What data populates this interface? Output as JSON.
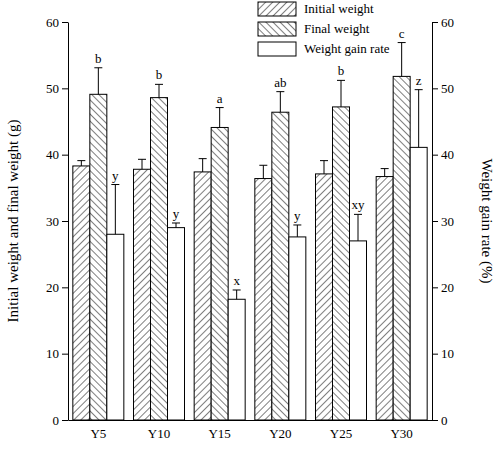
{
  "chart_data": {
    "type": "bar",
    "categories": [
      "Y5",
      "Y10",
      "Y15",
      "Y20",
      "Y25",
      "Y30"
    ],
    "series": [
      {
        "name": "Initial weight",
        "color": "#ffffff",
        "values": [
          38.3,
          37.8,
          37.4,
          36.4,
          37.1,
          36.7
        ],
        "errors": [
          0.8,
          1.5,
          2.0,
          2.0,
          2.0,
          1.2
        ]
      },
      {
        "name": "Final weight",
        "color": "#ffffff",
        "values": [
          49.1,
          48.6,
          44.1,
          46.4,
          47.2,
          51.8
        ],
        "errors": [
          4.0,
          2.0,
          3.0,
          3.1,
          4.0,
          5.1
        ],
        "letters": [
          "b",
          "b",
          "a",
          "ab",
          "b",
          "c"
        ]
      },
      {
        "name": "Weight gain rate",
        "color": "#ffffff",
        "axis": "y2",
        "values": [
          28.0,
          29.0,
          18.2,
          27.6,
          27.0,
          41.1
        ],
        "errors": [
          7.5,
          0.7,
          1.4,
          1.8,
          4.0,
          8.7
        ],
        "letters": [
          "y",
          "y",
          "x",
          "y",
          "xy",
          "z"
        ]
      }
    ],
    "ylabel": "Initial weight and final weight (g)",
    "y2label": "Weight gain rate (%)",
    "ylim": [
      0,
      60
    ],
    "yticks": [
      0,
      10,
      20,
      30,
      40,
      50,
      60
    ],
    "y2lim": [
      0,
      60
    ],
    "y2ticks": [
      0,
      10,
      20,
      30,
      40,
      50,
      60
    ],
    "legend": "top right"
  }
}
